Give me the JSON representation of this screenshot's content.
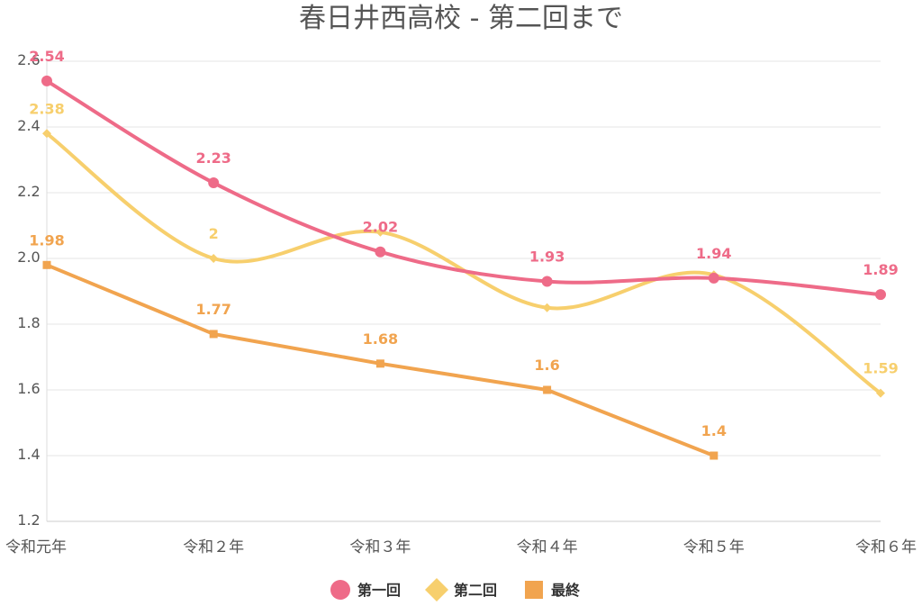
{
  "chart_data": {
    "type": "line",
    "title": "春日井西高校 - 第二回まで",
    "xlabel": "",
    "ylabel": "",
    "categories": [
      "令和元年",
      "令和２年",
      "令和３年",
      "令和４年",
      "令和５年",
      "令和６年"
    ],
    "ylim": [
      1.2,
      2.6
    ],
    "yticks": [
      "1.2",
      "1.4",
      "1.6",
      "1.8",
      "2.0",
      "2.2",
      "2.4",
      "2.6"
    ],
    "grid": true,
    "legend_position": "bottom",
    "series": [
      {
        "name": "第一回",
        "color": "#ee6b88",
        "marker": "circle",
        "smooth": true,
        "values": [
          2.54,
          2.23,
          2.02,
          1.93,
          1.94,
          1.89
        ],
        "labels": [
          "2.54",
          "2.23",
          "2.02",
          "1.93",
          "1.94",
          "1.89"
        ]
      },
      {
        "name": "第二回",
        "color": "#f7cf6d",
        "marker": "diamond",
        "smooth": true,
        "values": [
          2.38,
          2.0,
          2.08,
          1.85,
          1.95,
          1.59
        ],
        "labels": [
          "2.38",
          "2",
          "",
          "",
          "",
          "1.59"
        ]
      },
      {
        "name": "最終",
        "color": "#f1a44f",
        "marker": "square",
        "smooth": false,
        "values": [
          1.98,
          1.77,
          1.68,
          1.6,
          1.4,
          null
        ],
        "labels": [
          "1.98",
          "1.77",
          "1.68",
          "1.6",
          "1.4",
          ""
        ]
      }
    ]
  }
}
